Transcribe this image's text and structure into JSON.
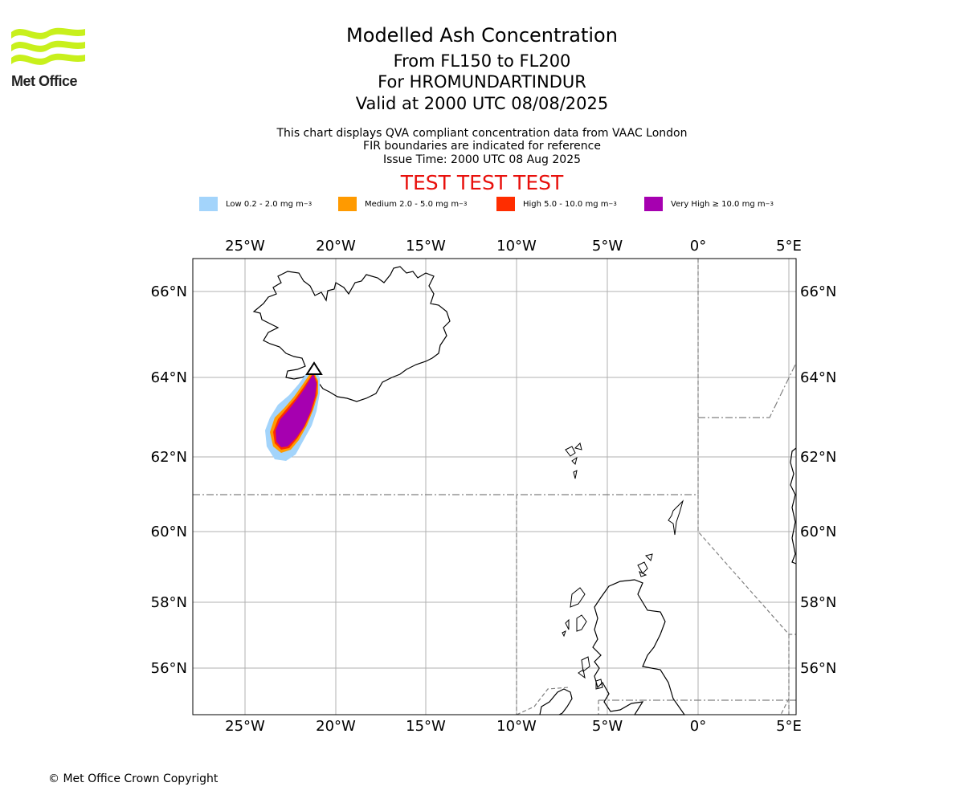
{
  "logo": {
    "text": "Met Office"
  },
  "header": {
    "title": "Modelled Ash Concentration",
    "levels": "From FL150 to FL200",
    "volcano": "For HROMUNDARTINDUR",
    "valid": "Valid at 2000 UTC 08/08/2025"
  },
  "subheader": {
    "line1": "This chart displays QVA compliant concentration data from VAAC London",
    "line2": "FIR boundaries are indicated for reference",
    "line3": "Issue Time: 2000 UTC 08 Aug 2025"
  },
  "banner": "TEST TEST TEST",
  "legend": [
    {
      "label": "Low 0.2 - 2.0 mg m",
      "exp": "−3",
      "color": "#a3d4fb"
    },
    {
      "label": "Medium 2.0 - 5.0 mg m",
      "exp": "−3",
      "color": "#ff9a00"
    },
    {
      "label": "High 5.0 - 10.0 mg m",
      "exp": "−3",
      "color": "#ff2d00"
    },
    {
      "label": "Very High  ≥  10.0 mg m",
      "exp": "−3",
      "color": "#a600b0"
    }
  ],
  "map": {
    "lon_ticks": [
      "25°W",
      "20°W",
      "15°W",
      "10°W",
      "5°W",
      "0°",
      "5°E"
    ],
    "lat_ticks": [
      "66°N",
      "64°N",
      "62°N",
      "60°N",
      "58°N",
      "56°N"
    ],
    "colors": {
      "coast": "#000000",
      "grid": "#b0b0b0",
      "fir": "#808080"
    }
  },
  "footer": {
    "copyright": "© Met Office Crown Copyright"
  }
}
